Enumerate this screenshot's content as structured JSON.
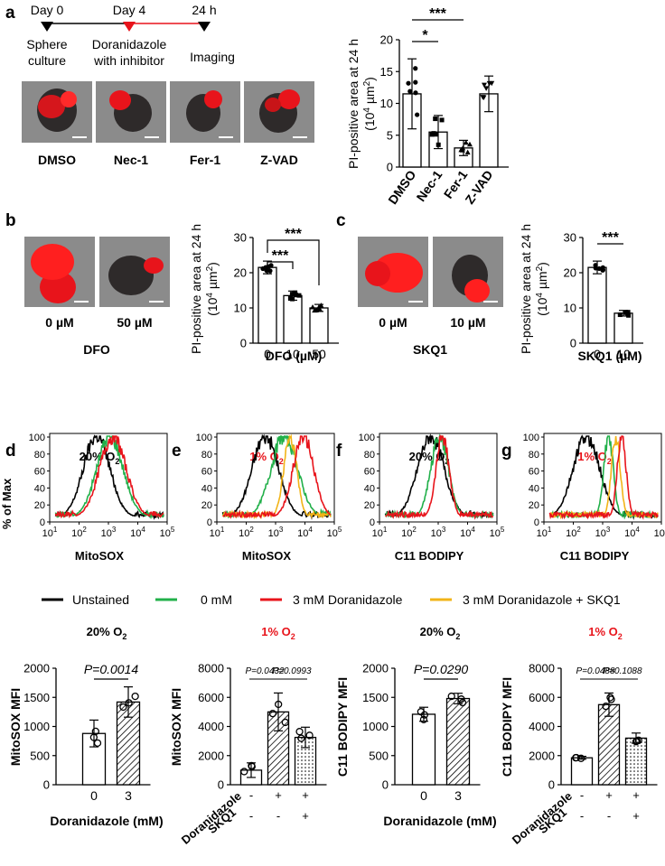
{
  "panels": {
    "a": "a",
    "b": "b",
    "c": "c",
    "d": "d",
    "e": "e",
    "f": "f",
    "g": "g"
  },
  "timeline": {
    "day0": "Day 0",
    "day4": "Day 4",
    "h24": "24 h",
    "sphere1": "Sphere",
    "sphere2": "culture",
    "dorani1": "Doranidazole",
    "dorani2": "with inhibitor",
    "imaging": "Imaging"
  },
  "images_a": [
    "DMSO",
    "Nec-1",
    "Fer-1",
    "Z-VAD"
  ],
  "images_b": {
    "left": "0 µM",
    "right": "50 µM",
    "group": "DFO"
  },
  "images_c": {
    "left": "0 µM",
    "right": "10 µM",
    "group": "SKQ1"
  },
  "conditions": {
    "d": "20% O",
    "e": "1% O",
    "f": "20% O",
    "g": "1% O",
    "sub": "2"
  },
  "hist_axes": {
    "ylabel": "% of Max",
    "d": "MitoSOX",
    "e": "MitoSOX",
    "f": "C11 BODIPY",
    "g": "C11 BODIPY",
    "ticks_y": [
      "0",
      "20",
      "40",
      "60",
      "80",
      "100"
    ],
    "ticks_x_base": "10",
    "ticks_x_exp": [
      "1",
      "2",
      "3",
      "4",
      "5"
    ]
  },
  "legend": [
    "Unstained",
    "0 mM",
    "3 mM Doranidazole",
    "3 mM Doranidazole + SKQ1"
  ],
  "colors": {
    "unstained": "#000000",
    "zero": "#22b04a",
    "dorani": "#e8141b",
    "skq1": "#f2b418",
    "red_label": "#e8141b"
  },
  "misc": {
    "pi_line1": "PI-positive area at 24 h",
    "pi_unit_open": "(10",
    "pi_unit_exp": "4",
    "pi_unit_mid": " µm",
    "pi_unit_exp2": "2",
    "pi_unit_close": ")",
    "mitosox_mfi": "MitoSOX MFI",
    "c11_mfi": "C11 BODIPY MFI",
    "doranidazole": "Doranidazole",
    "skq1": "SKQ1",
    "dorani_mM": "Doranidazole (mM)",
    "dfo_um": "DFO (µM)",
    "skq1_um": "SKQ1 (µM)",
    "plus": "+",
    "minus": "-"
  },
  "chart_data": [
    {
      "id": "a",
      "type": "bar",
      "categories": [
        "DMSO",
        "Nec-1",
        "Fer-1",
        "Z-VAD"
      ],
      "values": [
        11.5,
        5.5,
        3.0,
        11.5
      ],
      "errors": [
        5.5,
        2.6,
        1.2,
        2.8
      ],
      "ylim": [
        0,
        20
      ],
      "yticks": [
        "0",
        "5",
        "10",
        "15",
        "20"
      ],
      "ylabel": "PI-positive area at 24 h (10^4 µm^2)",
      "significance": [
        {
          "text": "*",
          "from": "DMSO",
          "to": "Nec-1"
        },
        {
          "text": "***",
          "from": "DMSO",
          "to": "Fer-1"
        }
      ]
    },
    {
      "id": "b",
      "type": "bar",
      "categories": [
        "0",
        "10",
        "50"
      ],
      "values": [
        21.5,
        13.5,
        10.0
      ],
      "errors": [
        1.8,
        1.3,
        1.0
      ],
      "ylim": [
        0,
        30
      ],
      "yticks": [
        "0",
        "10",
        "20",
        "30"
      ],
      "xlabel": "DFO (µM)",
      "significance": [
        {
          "text": "***",
          "from": "0",
          "to": "10"
        },
        {
          "text": "***",
          "from": "0",
          "to": "50"
        }
      ]
    },
    {
      "id": "c",
      "type": "bar",
      "categories": [
        "0",
        "10"
      ],
      "values": [
        21.5,
        8.5
      ],
      "errors": [
        1.8,
        0.8
      ],
      "ylim": [
        0,
        30
      ],
      "yticks": [
        "0",
        "10",
        "20",
        "30"
      ],
      "xlabel": "SKQ1 (µM)",
      "significance": [
        {
          "text": "***",
          "from": "0",
          "to": "10"
        }
      ]
    },
    {
      "id": "d2",
      "type": "bar",
      "title": "20% O2",
      "categories": [
        "0",
        "3"
      ],
      "values": [
        880,
        1420
      ],
      "errors": [
        230,
        260
      ],
      "ylim": [
        0,
        2000
      ],
      "yticks": [
        "0",
        "500",
        "1000",
        "1500",
        "2000"
      ],
      "ylabel": "MitoSOX MFI",
      "xlabel": "Doranidazole (mM)",
      "pvalue": "P=0.0014"
    },
    {
      "id": "e2",
      "type": "bar",
      "title": "1% O2",
      "values": [
        1000,
        5000,
        3250
      ],
      "errors": [
        500,
        1300,
        700
      ],
      "ylim": [
        0,
        8000
      ],
      "yticks": [
        "0",
        "2000",
        "4000",
        "6000",
        "8000"
      ],
      "ylabel": "MitoSOX MFI",
      "doranidazole": [
        "-",
        "+",
        "+"
      ],
      "skq1": [
        "-",
        "-",
        "+"
      ],
      "pvalues": [
        "P=0.0432",
        "P=0.0993"
      ]
    },
    {
      "id": "f2",
      "type": "bar",
      "title": "20% O2",
      "categories": [
        "0",
        "3"
      ],
      "values": [
        1210,
        1480
      ],
      "errors": [
        120,
        90
      ],
      "ylim": [
        0,
        2000
      ],
      "yticks": [
        "0",
        "500",
        "1000",
        "1500",
        "2000"
      ],
      "ylabel": "C11 BODIPY MFI",
      "xlabel": "Doranidazole (mM)",
      "pvalue": "P=0.0290"
    },
    {
      "id": "g2",
      "type": "bar",
      "title": "1% O2",
      "values": [
        1850,
        5500,
        3200
      ],
      "errors": [
        100,
        800,
        350
      ],
      "ylim": [
        0,
        8000
      ],
      "yticks": [
        "0",
        "2000",
        "4000",
        "6000",
        "8000"
      ],
      "ylabel": "C11 BODIPY MFI",
      "doranidazole": [
        "-",
        "+",
        "+"
      ],
      "skq1": [
        "-",
        "-",
        "+"
      ],
      "pvalues": [
        "P=0.0488",
        "P=0.1088"
      ]
    }
  ]
}
